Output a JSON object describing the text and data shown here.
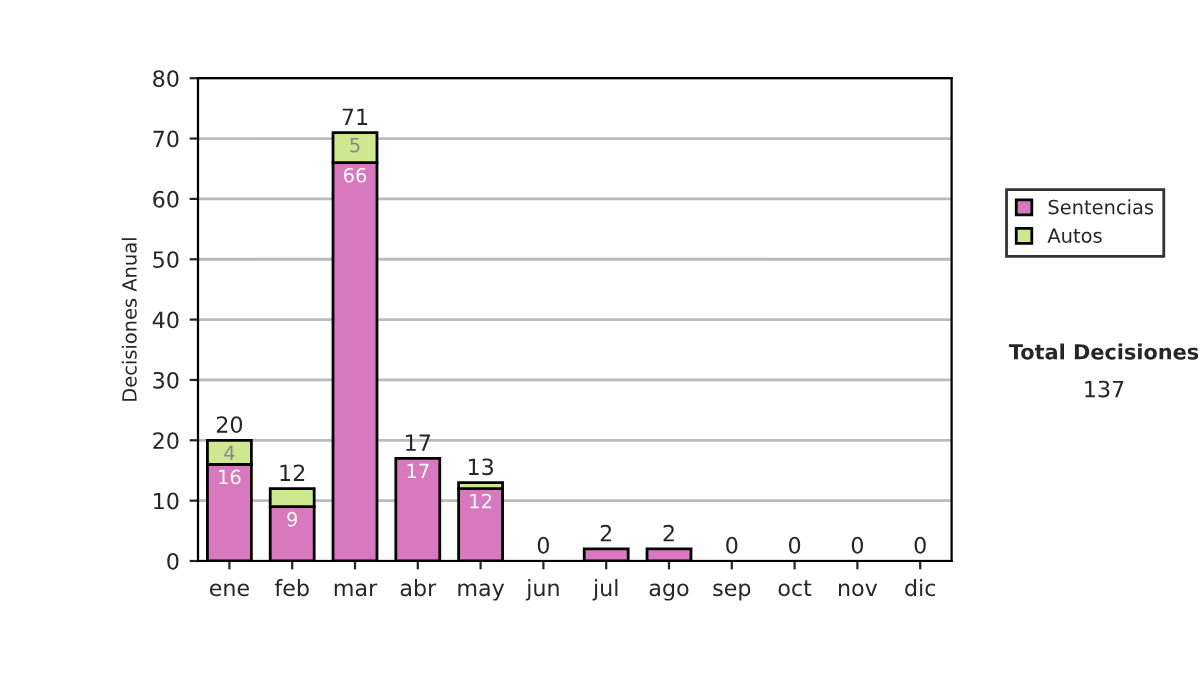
{
  "chart_data": {
    "type": "bar",
    "stacked": true,
    "ylabel": "Decisiones Anual",
    "categories": [
      "ene",
      "feb",
      "mar",
      "abr",
      "may",
      "jun",
      "jul",
      "ago",
      "sep",
      "oct",
      "nov",
      "dic"
    ],
    "series": [
      {
        "name": "Sentencias",
        "color": "#d878bf",
        "values": [
          16,
          9,
          66,
          17,
          12,
          0,
          2,
          2,
          0,
          0,
          0,
          0
        ],
        "value_labels": [
          "16",
          "9",
          "66",
          "17",
          "12",
          null,
          null,
          null,
          null,
          null,
          null,
          null
        ]
      },
      {
        "name": "Autos",
        "color": "#cde88f",
        "values": [
          4,
          3,
          5,
          0,
          1,
          0,
          0,
          0,
          0,
          0,
          0,
          0
        ],
        "value_labels": [
          "4",
          null,
          "5",
          null,
          null,
          null,
          null,
          null,
          null,
          null,
          null,
          null
        ]
      }
    ],
    "totals": [
      "20",
      "12",
      "71",
      "17",
      "13",
      "0",
      "2",
      "2",
      "0",
      "0",
      "0",
      "0"
    ],
    "ylim": [
      0,
      80
    ],
    "yticks": [
      0,
      10,
      20,
      30,
      40,
      50,
      60,
      70,
      80
    ],
    "grid": "y",
    "legend": "right",
    "annotations": [
      "Total Decisiones",
      "137"
    ]
  }
}
